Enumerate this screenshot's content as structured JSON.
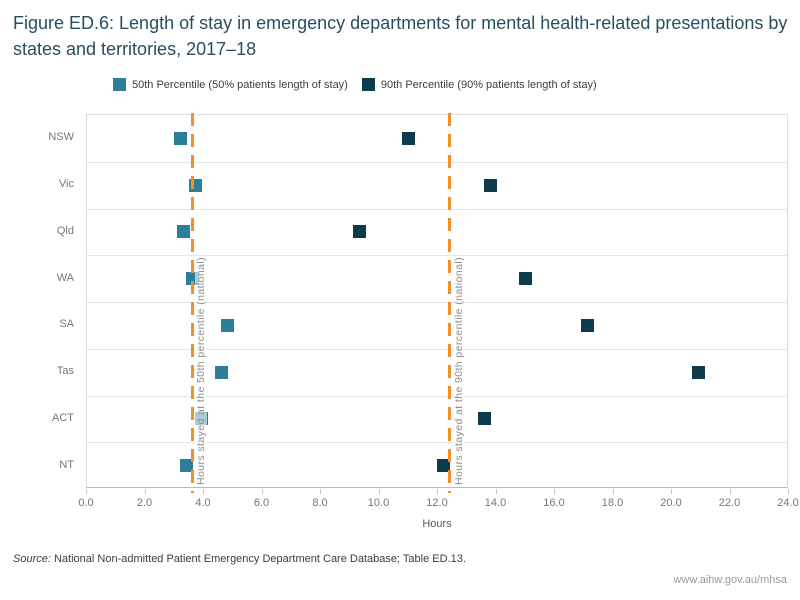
{
  "title": "Figure ED.6: Length of stay in emergency departments for mental health-related presentations by states and territories, 2017–18",
  "source": {
    "label": "Source:",
    "text": " National Non-admitted Patient Emergency Department Care Database; Table ED.13."
  },
  "footer": {
    "website": "www.aihw.gov.au/mhsa"
  },
  "colors": {
    "title": "#2a4d60",
    "percentile_50": "#2E7E9B",
    "percentile_90": "#0C3B4C",
    "reference_line": "#F28E2B",
    "axis_text": "#767676"
  },
  "chart_data": {
    "type": "scatter",
    "title": "Figure ED.6: Length of stay in emergency departments for mental health-related presentations by states and territories, 2017–18",
    "categories": [
      "NSW",
      "Vic",
      "Qld",
      "WA",
      "SA",
      "Tas",
      "ACT",
      "NT"
    ],
    "series": [
      {
        "name": "50th Percentile (50% patients length of stay)",
        "color": "#2E7E9B",
        "values": [
          3.2,
          3.7,
          3.3,
          3.6,
          4.8,
          4.6,
          3.9,
          3.4
        ]
      },
      {
        "name": "90th Percentile (90% patients length of stay)",
        "color": "#0C3B4C",
        "values": [
          11.0,
          13.8,
          9.3,
          15.0,
          17.1,
          20.9,
          13.6,
          12.2
        ]
      }
    ],
    "reference_lines": [
      {
        "value": 3.6,
        "label": "Hours stayed at the 50th percentile (national)",
        "color": "#F28E2B"
      },
      {
        "value": 12.4,
        "label": "Hours stayed at the 90th percentile (national)",
        "color": "#F28E2B"
      }
    ],
    "xlabel": "Hours",
    "xlim": [
      0,
      24
    ],
    "xticks": [
      "0.0",
      "2.0",
      "4.0",
      "6.0",
      "8.0",
      "10.0",
      "12.0",
      "14.0",
      "16.0",
      "18.0",
      "20.0",
      "22.0",
      "24.0"
    ],
    "grid": "horizontal",
    "legend_position": "top"
  }
}
